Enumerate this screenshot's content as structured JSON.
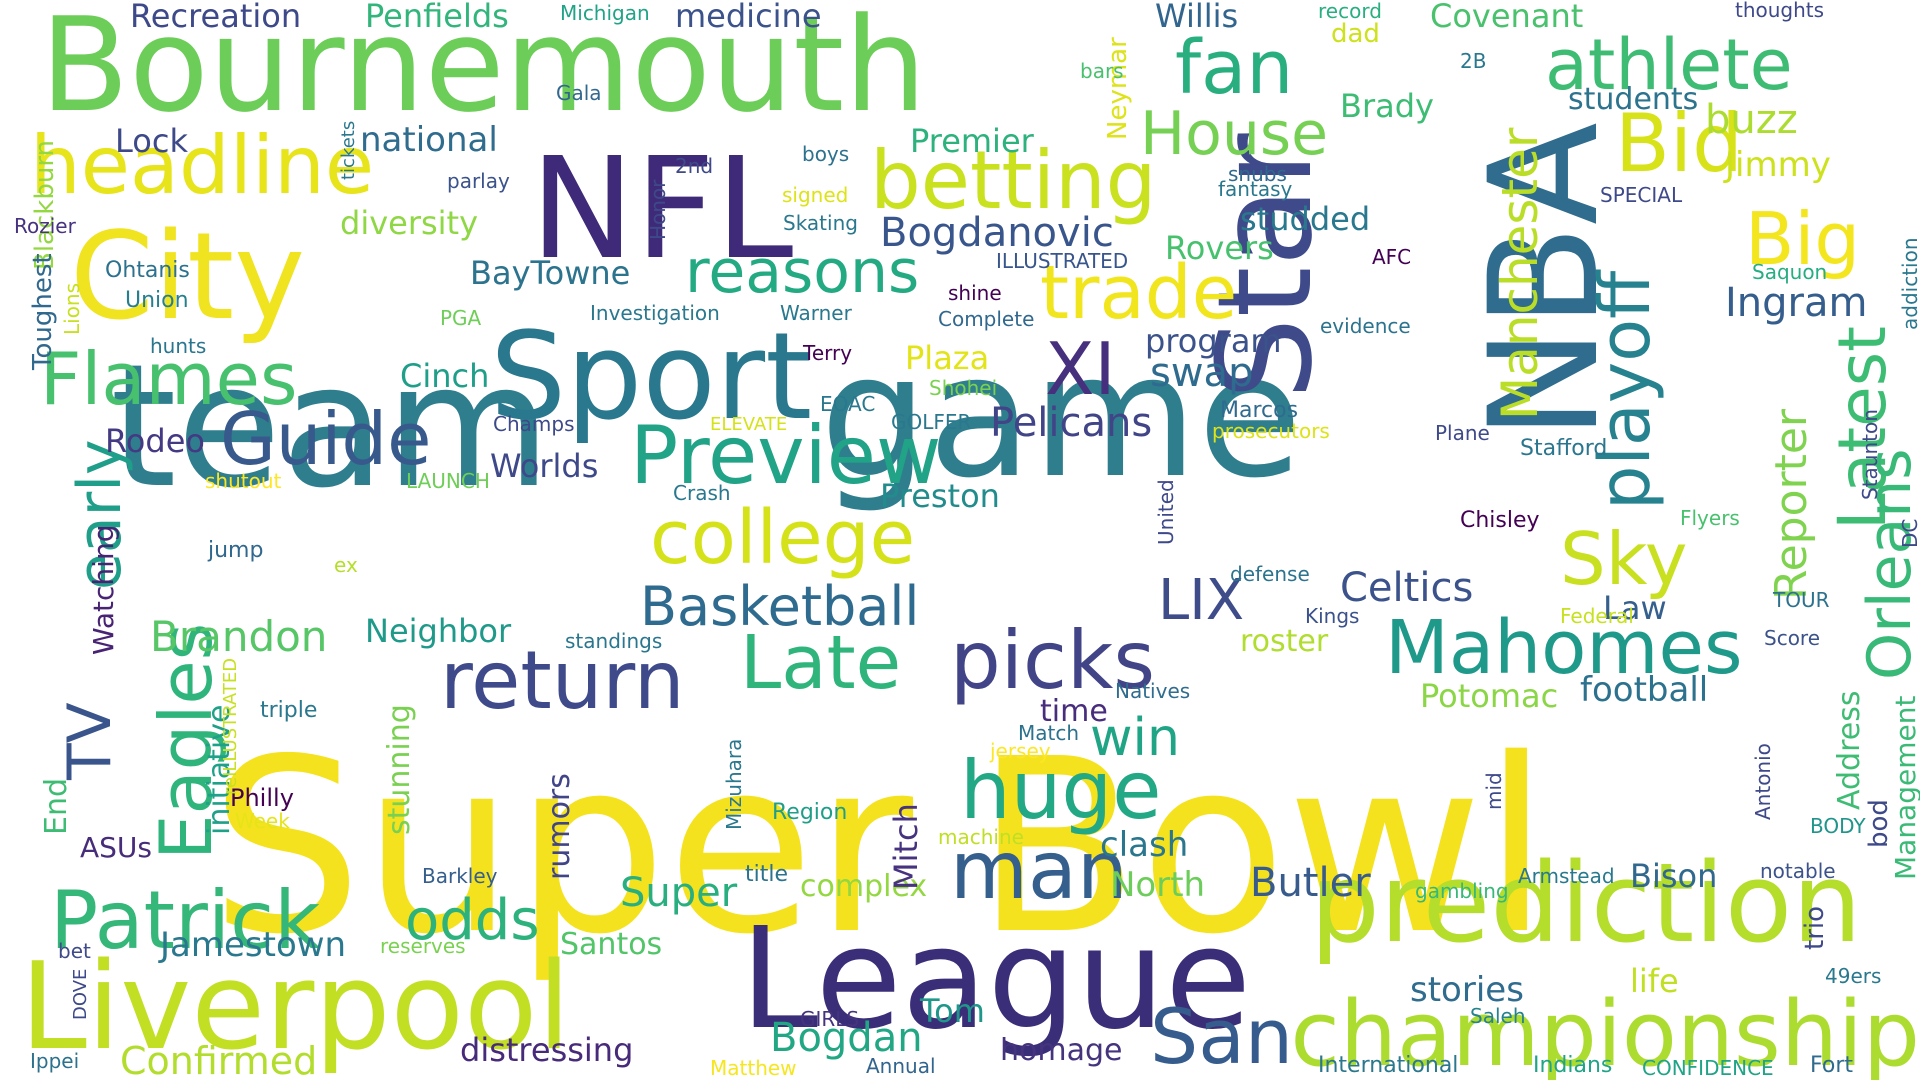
{
  "words": [
    {
      "text": "Super",
      "color": "#f5e21e",
      "vertical": false
    },
    {
      "text": "Bowl",
      "color": "#f5e21e",
      "vertical": false
    },
    {
      "text": "game",
      "color": "#2f7e8e",
      "vertical": false
    },
    {
      "text": "team",
      "color": "#2f7e8e",
      "vertical": false
    },
    {
      "text": "NBA",
      "color": "#2f6c8e",
      "vertical": true
    },
    {
      "text": "Star",
      "color": "#3e4a89",
      "vertical": true
    },
    {
      "text": "Bournemouth",
      "color": "#6dcd59",
      "vertical": false
    },
    {
      "text": "NFL",
      "color": "#3e2a78",
      "vertical": false
    },
    {
      "text": "City",
      "color": "#f0e31f",
      "vertical": false
    },
    {
      "text": "Sport",
      "color": "#2a788e",
      "vertical": false
    },
    {
      "text": "League",
      "color": "#3b2e78",
      "vertical": false
    },
    {
      "text": "Liverpool",
      "color": "#c2df23",
      "vertical": false
    },
    {
      "text": "prediction",
      "color": "#b4dd2c",
      "vertical": false
    },
    {
      "text": "championship",
      "color": "#addc30",
      "vertical": false
    },
    {
      "text": "headline",
      "color": "#e7e41c",
      "vertical": false
    },
    {
      "text": "betting",
      "color": "#cae11f",
      "vertical": false
    },
    {
      "text": "Preview",
      "color": "#20a386",
      "vertical": false
    },
    {
      "text": "Patrick",
      "color": "#35b779",
      "vertical": false
    },
    {
      "text": "Mahomes",
      "color": "#1f9a8a",
      "vertical": false
    },
    {
      "text": "return",
      "color": "#3e4a89",
      "vertical": false
    },
    {
      "text": "picks",
      "color": "#414487",
      "vertical": false
    },
    {
      "text": "college",
      "color": "#d5e21a",
      "vertical": false
    },
    {
      "text": "Late",
      "color": "#2fb47c",
      "vertical": false
    },
    {
      "text": "man",
      "color": "#355f8d",
      "vertical": false
    },
    {
      "text": "huge",
      "color": "#22a884",
      "vertical": false
    },
    {
      "text": "San",
      "color": "#365c8d",
      "vertical": false
    },
    {
      "text": "Guide",
      "color": "#38598c",
      "vertical": false
    },
    {
      "text": "Flames",
      "color": "#48c16e",
      "vertical": false
    },
    {
      "text": "trade",
      "color": "#f1e51d",
      "vertical": false
    },
    {
      "text": "fan",
      "color": "#29af7f",
      "vertical": false
    },
    {
      "text": "athlete",
      "color": "#3fbc73",
      "vertical": false
    },
    {
      "text": "House",
      "color": "#75d054",
      "vertical": false
    },
    {
      "text": "Bid",
      "color": "#d8e219",
      "vertical": false
    },
    {
      "text": "Big",
      "color": "#f4e61e",
      "vertical": false
    },
    {
      "text": "Sky",
      "color": "#c8e020",
      "vertical": false
    },
    {
      "text": "Basketball",
      "color": "#2f6b8e",
      "vertical": false
    },
    {
      "text": "reasons",
      "color": "#24aa83",
      "vertical": false
    },
    {
      "text": "XI",
      "color": "#46307e",
      "vertical": false
    },
    {
      "text": "LIX",
      "color": "#3e4c8a",
      "vertical": false
    },
    {
      "text": "odds",
      "color": "#2db27d",
      "vertical": false
    },
    {
      "text": "Eagles",
      "color": "#2fb47c",
      "vertical": true
    },
    {
      "text": "TV",
      "color": "#39558c",
      "vertical": true
    },
    {
      "text": "early",
      "color": "#1f9e89",
      "vertical": true
    },
    {
      "text": "playoff",
      "color": "#26828e",
      "vertical": true
    },
    {
      "text": "Latest",
      "color": "#3dbc74",
      "vertical": true
    },
    {
      "text": "Orleans",
      "color": "#38b977",
      "vertical": true
    },
    {
      "text": "Manchester",
      "color": "#bade28",
      "vertical": true
    },
    {
      "text": "Reporter",
      "color": "#7fd34e",
      "vertical": true
    },
    {
      "text": "Celtics",
      "color": "#3b528b",
      "vertical": false
    },
    {
      "text": "Brandon",
      "color": "#56c667",
      "vertical": false
    },
    {
      "text": "Jamestown",
      "color": "#2a788e",
      "vertical": false
    },
    {
      "text": "Confirmed",
      "color": "#b2dd2d",
      "vertical": false
    },
    {
      "text": "Bogdan",
      "color": "#22a785",
      "vertical": false
    },
    {
      "text": "Butler",
      "color": "#375b8d",
      "vertical": false
    },
    {
      "text": "Super",
      "color": "#29af7f",
      "vertical": false
    },
    {
      "text": "stories",
      "color": "#2f6c8e",
      "vertical": false
    },
    {
      "text": "football",
      "color": "#2c728e",
      "vertical": false
    },
    {
      "text": "Potomac",
      "color": "#8bd646",
      "vertical": false
    },
    {
      "text": "win",
      "color": "#20a486",
      "vertical": false
    },
    {
      "text": "clash",
      "color": "#2a768e",
      "vertical": false
    },
    {
      "text": "North",
      "color": "#6ccd5a",
      "vertical": false
    },
    {
      "text": "Bogdanovic",
      "color": "#39568c",
      "vertical": false
    },
    {
      "text": "Pelicans",
      "color": "#414487",
      "vertical": false
    },
    {
      "text": "Worlds",
      "color": "#3e4989",
      "vertical": false
    },
    {
      "text": "Preston",
      "color": "#228c8d",
      "vertical": false
    },
    {
      "text": "Neighbor",
      "color": "#1f9a8a",
      "vertical": false
    },
    {
      "text": "Ingram",
      "color": "#355e8d",
      "vertical": false
    },
    {
      "text": "swap",
      "color": "#2f6b8e",
      "vertical": false
    },
    {
      "text": "program",
      "color": "#3b528b",
      "vertical": false
    },
    {
      "text": "Plaza",
      "color": "#e2e418",
      "vertical": false
    },
    {
      "text": "Cinch",
      "color": "#1f9e89",
      "vertical": false
    },
    {
      "text": "BayTowne",
      "color": "#2c738e",
      "vertical": false
    },
    {
      "text": "diversity",
      "color": "#8fd744",
      "vertical": false
    },
    {
      "text": "national",
      "color": "#2f6c8e",
      "vertical": false
    },
    {
      "text": "Premier",
      "color": "#2db27d",
      "vertical": false
    },
    {
      "text": "medicine",
      "color": "#3b528b",
      "vertical": false
    },
    {
      "text": "Recreation",
      "color": "#3e4989",
      "vertical": false
    },
    {
      "text": "Penfields",
      "color": "#31b57b",
      "vertical": false
    },
    {
      "text": "Willis",
      "color": "#32658e",
      "vertical": false
    },
    {
      "text": "Covenant",
      "color": "#4ac16d",
      "vertical": false
    },
    {
      "text": "Brady",
      "color": "#3dbc74",
      "vertical": false
    },
    {
      "text": "students",
      "color": "#2c738e",
      "vertical": false
    },
    {
      "text": "buzz",
      "color": "#addc30",
      "vertical": false
    },
    {
      "text": "Jimmy",
      "color": "#cde11d",
      "vertical": false
    },
    {
      "text": "studded",
      "color": "#2a788e",
      "vertical": false
    },
    {
      "text": "Rovers",
      "color": "#48c16e",
      "vertical": false
    },
    {
      "text": "Lock",
      "color": "#3e4989",
      "vertical": false
    },
    {
      "text": "Rodeo",
      "color": "#443983",
      "vertical": false
    },
    {
      "text": "Law",
      "color": "#355f8d",
      "vertical": false
    },
    {
      "text": "roster",
      "color": "#b0dd2f",
      "vertical": false
    },
    {
      "text": "time",
      "color": "#472d7b",
      "vertical": false
    },
    {
      "text": "complex",
      "color": "#93d741",
      "vertical": false
    },
    {
      "text": "Santos",
      "color": "#52c569",
      "vertical": false
    },
    {
      "text": "Tom",
      "color": "#1f988b",
      "vertical": false
    },
    {
      "text": "homage",
      "color": "#46337e",
      "vertical": false
    },
    {
      "text": "distressing",
      "color": "#472a7a",
      "vertical": false
    },
    {
      "text": "life",
      "color": "#c2df23",
      "vertical": false
    },
    {
      "text": "Bison",
      "color": "#31688e",
      "vertical": false
    },
    {
      "text": "ASUs",
      "color": "#472c7a",
      "vertical": false
    },
    {
      "text": "Philly",
      "color": "#440154",
      "vertical": false
    },
    {
      "text": "Blackburn",
      "color": "#93d741",
      "vertical": true
    },
    {
      "text": "Toughest",
      "color": "#31688e",
      "vertical": true
    },
    {
      "text": "Watching",
      "color": "#482374",
      "vertical": true
    },
    {
      "text": "End",
      "color": "#3fbc73",
      "vertical": true
    },
    {
      "text": "initiative",
      "color": "#1fa088",
      "vertical": true
    },
    {
      "text": "stunning",
      "color": "#7ad151",
      "vertical": true
    },
    {
      "text": "rumors",
      "color": "#414487",
      "vertical": true
    },
    {
      "text": "Mitch",
      "color": "#46327e",
      "vertical": true
    },
    {
      "text": "Address",
      "color": "#3fbc73",
      "vertical": true
    },
    {
      "text": "Management",
      "color": "#3aba76",
      "vertical": true
    },
    {
      "text": "Neymar",
      "color": "#dde318",
      "vertical": true
    },
    {
      "text": "Ohtanis",
      "color": "#2c718e",
      "vertical": false
    },
    {
      "text": "Union",
      "color": "#277f8e",
      "vertical": false
    },
    {
      "text": "Rozier",
      "color": "#46327e",
      "vertical": false
    },
    {
      "text": "hunts",
      "color": "#2a768e",
      "vertical": false
    },
    {
      "text": "jump",
      "color": "#31688e",
      "vertical": false
    },
    {
      "text": "shutout",
      "color": "#fde725",
      "vertical": false
    },
    {
      "text": "LAUNCH",
      "color": "#6ece58",
      "vertical": false
    },
    {
      "text": "ex",
      "color": "#b5de2b",
      "vertical": false
    },
    {
      "text": "triple",
      "color": "#2a788e",
      "vertical": false
    },
    {
      "text": "Week",
      "color": "#e5e419",
      "vertical": false
    },
    {
      "text": "Barkley",
      "color": "#355e8d",
      "vertical": false
    },
    {
      "text": "reserves",
      "color": "#7ad151",
      "vertical": false
    },
    {
      "text": "bet",
      "color": "#3e4a89",
      "vertical": false
    },
    {
      "text": "Ippei",
      "color": "#2c728e",
      "vertical": false
    },
    {
      "text": "GIRLS",
      "color": "#46337e",
      "vertical": false
    },
    {
      "text": "Matthew",
      "color": "#f6e620",
      "vertical": false
    },
    {
      "text": "Annual",
      "color": "#32658e",
      "vertical": false
    },
    {
      "text": "International",
      "color": "#2a778e",
      "vertical": false
    },
    {
      "text": "Indians",
      "color": "#20a386",
      "vertical": false
    },
    {
      "text": "CONFIDENCE",
      "color": "#20a386",
      "vertical": false
    },
    {
      "text": "Fort",
      "color": "#2f6b8e",
      "vertical": false
    },
    {
      "text": "49ers",
      "color": "#2a788e",
      "vertical": false
    },
    {
      "text": "Saleh",
      "color": "#26828e",
      "vertical": false
    },
    {
      "text": "Armstead",
      "color": "#29798e",
      "vertical": false
    },
    {
      "text": "gambling",
      "color": "#37b878",
      "vertical": false
    },
    {
      "text": "notable",
      "color": "#3b528b",
      "vertical": false
    },
    {
      "text": "BODY",
      "color": "#1f958b",
      "vertical": false
    },
    {
      "text": "title",
      "color": "#2c728e",
      "vertical": false
    },
    {
      "text": "machine",
      "color": "#bfdf25",
      "vertical": false
    },
    {
      "text": "Region",
      "color": "#1f9e89",
      "vertical": false
    },
    {
      "text": "Match",
      "color": "#2c728e",
      "vertical": false
    },
    {
      "text": "jersey",
      "color": "#fde725",
      "vertical": false
    },
    {
      "text": "Natives",
      "color": "#2f6c8e",
      "vertical": false
    },
    {
      "text": "standings",
      "color": "#2a768e",
      "vertical": false
    },
    {
      "text": "defense",
      "color": "#2c738e",
      "vertical": false
    },
    {
      "text": "Kings",
      "color": "#3b528b",
      "vertical": false
    },
    {
      "text": "Federal",
      "color": "#c8e020",
      "vertical": false
    },
    {
      "text": "Chisley",
      "color": "#440154",
      "vertical": false
    },
    {
      "text": "Flyers",
      "color": "#48c16e",
      "vertical": false
    },
    {
      "text": "Score",
      "color": "#3b528b",
      "vertical": false
    },
    {
      "text": "TOUR",
      "color": "#2c728e",
      "vertical": false
    },
    {
      "text": "Stafford",
      "color": "#2a768e",
      "vertical": false
    },
    {
      "text": "Plane",
      "color": "#3e4989",
      "vertical": false
    },
    {
      "text": "Marcos",
      "color": "#2f6b8e",
      "vertical": false
    },
    {
      "text": "prosecutors",
      "color": "#dde318",
      "vertical": false
    },
    {
      "text": "evidence",
      "color": "#2c738e",
      "vertical": false
    },
    {
      "text": "AFC",
      "color": "#440154",
      "vertical": false
    },
    {
      "text": "Saquon",
      "color": "#26ad81",
      "vertical": false
    },
    {
      "text": "SPECIAL",
      "color": "#3e4989",
      "vertical": false
    },
    {
      "text": "snubs",
      "color": "#31688e",
      "vertical": false
    },
    {
      "text": "fantasy",
      "color": "#2a788e",
      "vertical": false
    },
    {
      "text": "ILLUSTRATED",
      "color": "#39568c",
      "vertical": false
    },
    {
      "text": "shine",
      "color": "#440154",
      "vertical": false
    },
    {
      "text": "Complete",
      "color": "#31688e",
      "vertical": false
    },
    {
      "text": "Terry",
      "color": "#440154",
      "vertical": false
    },
    {
      "text": "Shohei",
      "color": "#7ad151",
      "vertical": false
    },
    {
      "text": "GOLFER",
      "color": "#2a788e",
      "vertical": false
    },
    {
      "text": "EOAC",
      "color": "#2a788e",
      "vertical": false
    },
    {
      "text": "ELEVATE",
      "color": "#d5e21a",
      "vertical": false
    },
    {
      "text": "Champs",
      "color": "#3e4989",
      "vertical": false
    },
    {
      "text": "Crash",
      "color": "#2a788e",
      "vertical": false
    },
    {
      "text": "Warner",
      "color": "#2a788e",
      "vertical": false
    },
    {
      "text": "Investigation",
      "color": "#2a788e",
      "vertical": false
    },
    {
      "text": "PGA",
      "color": "#6ece58",
      "vertical": false
    },
    {
      "text": "Skating",
      "color": "#2a788e",
      "vertical": false
    },
    {
      "text": "signed",
      "color": "#dde318",
      "vertical": false
    },
    {
      "text": "boys",
      "color": "#2c728e",
      "vertical": false
    },
    {
      "text": "2nd",
      "color": "#3e4989",
      "vertical": false
    },
    {
      "text": "parlay",
      "color": "#3b528b",
      "vertical": false
    },
    {
      "text": "Gala",
      "color": "#31688e",
      "vertical": false
    },
    {
      "text": "Michigan",
      "color": "#20a386",
      "vertical": false
    },
    {
      "text": "bars",
      "color": "#48c16e",
      "vertical": false
    },
    {
      "text": "record",
      "color": "#29af7f",
      "vertical": false
    },
    {
      "text": "dad",
      "color": "#cde11d",
      "vertical": false
    },
    {
      "text": "2B",
      "color": "#2a788e",
      "vertical": false
    },
    {
      "text": "thoughts",
      "color": "#3e4989",
      "vertical": false
    },
    {
      "text": "tickets",
      "color": "#2a788e",
      "vertical": true
    },
    {
      "text": "Honor",
      "color": "#3e4989",
      "vertical": true
    },
    {
      "text": "United",
      "color": "#3e4989",
      "vertical": true
    },
    {
      "text": "Lions",
      "color": "#c8e020",
      "vertical": true
    },
    {
      "text": "reILLUSTRATED",
      "color": "#c8e020",
      "vertical": true
    },
    {
      "text": "Mizuhara",
      "color": "#2a788e",
      "vertical": true
    },
    {
      "text": "mid",
      "color": "#3e4989",
      "vertical": true
    },
    {
      "text": "Antonio",
      "color": "#3e4989",
      "vertical": true
    },
    {
      "text": "trio",
      "color": "#3e4989",
      "vertical": true
    },
    {
      "text": "bod",
      "color": "#3e4989",
      "vertical": true
    },
    {
      "text": "DC",
      "color": "#3e4989",
      "vertical": true
    },
    {
      "text": "Staunton",
      "color": "#3e4989",
      "vertical": true
    },
    {
      "text": "addiction",
      "color": "#2a788e",
      "vertical": true
    },
    {
      "text": "DOVE",
      "color": "#3e4989",
      "vertical": true
    }
  ]
}
